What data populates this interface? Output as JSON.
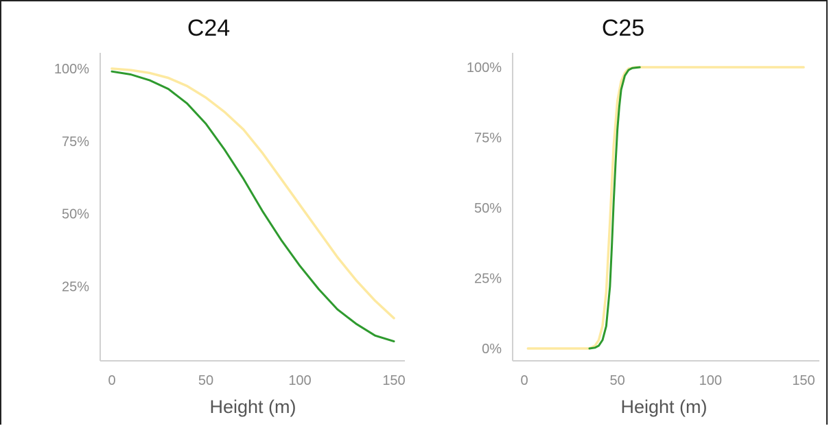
{
  "chart_data": [
    {
      "type": "line",
      "title": "C24",
      "xlabel": "Height (m)",
      "ylabel": "",
      "xlim": [
        0,
        150
      ],
      "ylim": [
        0,
        1
      ],
      "xticks": [
        "0",
        "50",
        "100",
        "150"
      ],
      "yticks": [
        "25%",
        "50%",
        "75%",
        "100%"
      ],
      "ytick_values": [
        0.25,
        0.5,
        0.75,
        1.0
      ],
      "grid": false,
      "series": [
        {
          "color": "#fde9a0",
          "x": [
            0,
            10,
            20,
            30,
            40,
            50,
            60,
            70,
            80,
            90,
            100,
            110,
            120,
            130,
            140,
            150
          ],
          "y": [
            1.0,
            0.995,
            0.985,
            0.968,
            0.94,
            0.9,
            0.85,
            0.79,
            0.71,
            0.62,
            0.53,
            0.44,
            0.35,
            0.27,
            0.2,
            0.14
          ]
        },
        {
          "color": "#2e9a2e",
          "x": [
            0,
            10,
            20,
            30,
            40,
            50,
            60,
            70,
            80,
            90,
            100,
            110,
            120,
            130,
            140,
            150
          ],
          "y": [
            0.99,
            0.98,
            0.96,
            0.93,
            0.88,
            0.81,
            0.72,
            0.62,
            0.51,
            0.41,
            0.32,
            0.24,
            0.17,
            0.12,
            0.08,
            0.06
          ]
        }
      ]
    },
    {
      "type": "line",
      "title": "C25",
      "xlabel": "Height (m)",
      "ylabel": "",
      "xlim": [
        0,
        150
      ],
      "ylim": [
        0,
        1
      ],
      "xticks": [
        "0",
        "50",
        "100",
        "150"
      ],
      "yticks": [
        "0%",
        "25%",
        "50%",
        "75%",
        "100%"
      ],
      "ytick_values": [
        0,
        0.25,
        0.5,
        0.75,
        1.0
      ],
      "grid": false,
      "series": [
        {
          "color": "#fde9a0",
          "x": [
            2,
            35,
            38,
            40,
            42,
            44,
            46,
            48,
            50,
            52,
            54,
            56,
            60,
            80,
            150
          ],
          "y": [
            0.0,
            0.0,
            0.01,
            0.03,
            0.08,
            0.2,
            0.45,
            0.72,
            0.88,
            0.95,
            0.98,
            0.995,
            1.0,
            1.0,
            1.0
          ]
        },
        {
          "color": "#2e9a2e",
          "x": [
            35,
            38,
            40,
            42,
            44,
            46,
            47,
            48,
            49,
            50,
            51,
            52,
            54,
            56,
            58,
            62
          ],
          "y": [
            0.0,
            0.003,
            0.01,
            0.03,
            0.08,
            0.22,
            0.36,
            0.52,
            0.66,
            0.78,
            0.86,
            0.92,
            0.97,
            0.99,
            0.997,
            1.0
          ]
        }
      ]
    }
  ]
}
